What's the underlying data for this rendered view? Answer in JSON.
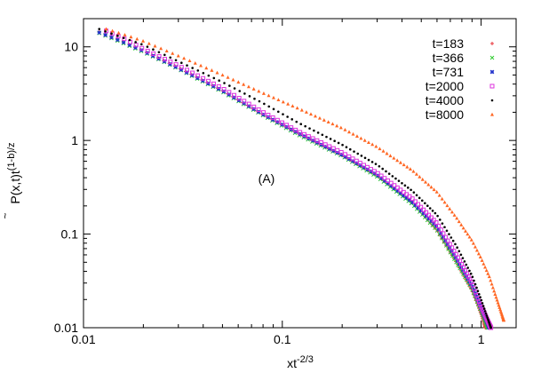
{
  "chart_data": {
    "type": "scatter",
    "title": "",
    "xlabel": "xt",
    "xlabel_exp": "-2/3",
    "ylabel": "P(x,t)t",
    "ylabel_exp": "(1-b)/z",
    "x_scale": "log",
    "y_scale": "log",
    "xlim": [
      0.01,
      1.5
    ],
    "ylim": [
      0.01,
      20
    ],
    "x_ticks": [
      {
        "value": 0.01,
        "label": "0.01"
      },
      {
        "value": 0.1,
        "label": "0.1"
      },
      {
        "value": 1,
        "label": "1"
      }
    ],
    "y_ticks": [
      {
        "value": 0.01,
        "label": "0.01"
      },
      {
        "value": 0.1,
        "label": "0.1"
      },
      {
        "value": 1,
        "label": "1"
      },
      {
        "value": 10,
        "label": "10"
      }
    ],
    "grid": false,
    "legend_position": "top-right",
    "annotation": "(A)",
    "series": [
      {
        "name": "t=183",
        "color": "#e8373c",
        "marker": "plus",
        "x": [
          0.012,
          0.015,
          0.02,
          0.03,
          0.05,
          0.08,
          0.12,
          0.2,
          0.3,
          0.45,
          0.6,
          0.75,
          0.9,
          1.0,
          1.05
        ],
        "y": [
          14.5,
          12.0,
          9.0,
          6.0,
          3.4,
          1.9,
          1.2,
          0.7,
          0.42,
          0.22,
          0.11,
          0.05,
          0.025,
          0.014,
          0.01
        ]
      },
      {
        "name": "t=366",
        "color": "#33cc33",
        "marker": "cross",
        "x": [
          0.012,
          0.015,
          0.02,
          0.03,
          0.05,
          0.08,
          0.12,
          0.2,
          0.3,
          0.45,
          0.6,
          0.75,
          0.9,
          1.0,
          1.08
        ],
        "y": [
          14.0,
          11.5,
          8.8,
          5.8,
          3.3,
          1.85,
          1.15,
          0.68,
          0.41,
          0.21,
          0.11,
          0.05,
          0.026,
          0.015,
          0.01
        ]
      },
      {
        "name": "t=731",
        "color": "#2233cc",
        "marker": "star",
        "x": [
          0.012,
          0.015,
          0.02,
          0.03,
          0.05,
          0.08,
          0.12,
          0.2,
          0.3,
          0.45,
          0.6,
          0.75,
          0.9,
          1.0,
          1.1
        ],
        "y": [
          14.2,
          11.8,
          9.0,
          5.9,
          3.4,
          1.9,
          1.2,
          0.7,
          0.43,
          0.22,
          0.12,
          0.055,
          0.028,
          0.016,
          0.01
        ]
      },
      {
        "name": "t=2000",
        "color": "#dd33dd",
        "marker": "square",
        "x": [
          0.013,
          0.016,
          0.02,
          0.03,
          0.05,
          0.08,
          0.12,
          0.2,
          0.3,
          0.45,
          0.6,
          0.75,
          0.9,
          1.0,
          1.12
        ],
        "y": [
          14.8,
          12.2,
          9.5,
          6.3,
          3.6,
          2.0,
          1.25,
          0.74,
          0.45,
          0.24,
          0.13,
          0.06,
          0.03,
          0.017,
          0.01
        ]
      },
      {
        "name": "t=4000",
        "color": "#000000",
        "marker": "dot",
        "x": [
          0.012,
          0.015,
          0.02,
          0.03,
          0.05,
          0.08,
          0.12,
          0.2,
          0.3,
          0.45,
          0.6,
          0.75,
          0.9,
          1.0,
          1.12
        ],
        "y": [
          15.5,
          13.0,
          10.5,
          7.0,
          4.2,
          2.5,
          1.55,
          0.9,
          0.55,
          0.29,
          0.16,
          0.075,
          0.036,
          0.02,
          0.01
        ]
      },
      {
        "name": "t=8000",
        "color": "#ff6622",
        "marker": "triangle",
        "x": [
          0.013,
          0.016,
          0.02,
          0.03,
          0.05,
          0.08,
          0.12,
          0.2,
          0.3,
          0.45,
          0.6,
          0.75,
          0.9,
          1.0,
          1.1,
          1.2,
          1.3
        ],
        "y": [
          15.5,
          13.5,
          11.5,
          8.0,
          5.0,
          3.2,
          2.2,
          1.35,
          0.85,
          0.48,
          0.28,
          0.15,
          0.085,
          0.055,
          0.035,
          0.02,
          0.012
        ]
      }
    ]
  }
}
